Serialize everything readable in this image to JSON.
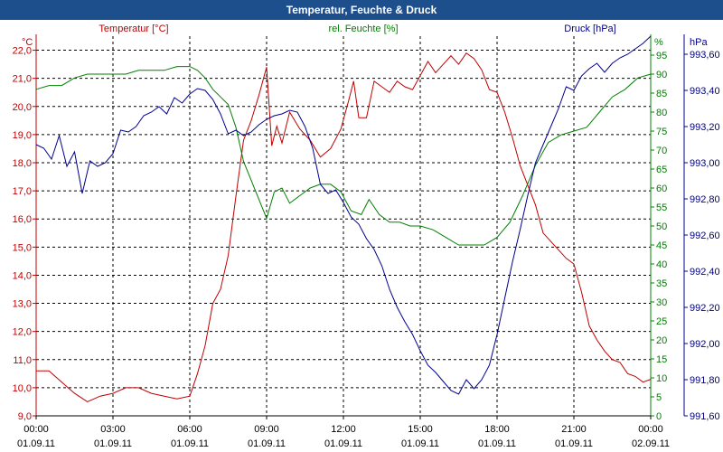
{
  "window": {
    "title": "Temperatur, Feuchte & Druck"
  },
  "colors": {
    "temperature": "#c00000",
    "humidity": "#008000",
    "pressure": "#000090",
    "grid": "#000000",
    "titlebar": "#1d4f8c"
  },
  "chart_data": {
    "type": "line",
    "title": "Temperatur, Feuchte & Druck",
    "grid": true,
    "x_hours": [
      0,
      3,
      6,
      9,
      12,
      15,
      18,
      21,
      24
    ],
    "x_tick_times": [
      "00:00",
      "03:00",
      "06:00",
      "09:00",
      "12:00",
      "15:00",
      "18:00",
      "21:00",
      "00:00"
    ],
    "x_tick_dates": [
      "01.09.11",
      "01.09.11",
      "01.09.11",
      "01.09.11",
      "01.09.11",
      "01.09.11",
      "01.09.11",
      "01.09.11",
      "02.09.11"
    ],
    "axes": {
      "temperature": {
        "unit": "°C",
        "label": "Temperatur [°C]",
        "range": [
          9.0,
          22.5
        ],
        "ticks": [
          "22,0",
          "21,0",
          "20,0",
          "19,0",
          "18,0",
          "17,0",
          "16,0",
          "15,0",
          "14,0",
          "13,0",
          "12,0",
          "11,0",
          "10,0",
          "9,0"
        ],
        "tick_values": [
          22,
          21,
          20,
          19,
          18,
          17,
          16,
          15,
          14,
          13,
          12,
          11,
          10,
          9
        ]
      },
      "humidity": {
        "unit": "%",
        "label": "rel. Feuchte [%]",
        "range": [
          0,
          100
        ],
        "ticks": [
          "95",
          "90",
          "85",
          "80",
          "75",
          "70",
          "65",
          "60",
          "55",
          "50",
          "45",
          "40",
          "35",
          "30",
          "25",
          "20",
          "15",
          "10",
          "5",
          "0"
        ],
        "tick_values": [
          95,
          90,
          85,
          80,
          75,
          70,
          65,
          60,
          55,
          50,
          45,
          40,
          35,
          30,
          25,
          20,
          15,
          10,
          5,
          0
        ]
      },
      "pressure": {
        "unit": "hPa",
        "label": "Druck [hPa]",
        "range": [
          991.6,
          993.7
        ],
        "ticks": [
          "993,60",
          "993,40",
          "993,20",
          "993,00",
          "992,80",
          "992,60",
          "992,40",
          "992,20",
          "992,00",
          "991,80",
          "991,60"
        ],
        "tick_values": [
          993.6,
          993.4,
          993.2,
          993.0,
          992.8,
          992.6,
          992.4,
          992.2,
          992.0,
          991.8,
          991.6
        ]
      }
    },
    "series": [
      {
        "name": "Temperatur [°C]",
        "axis": "temperature",
        "x": [
          0,
          0.5,
          1,
          1.5,
          2,
          2.5,
          3,
          3.5,
          4,
          4.5,
          5,
          5.5,
          6,
          6.3,
          6.6,
          6.9,
          7.2,
          7.5,
          7.8,
          8.1,
          8.4,
          8.7,
          9,
          9.2,
          9.4,
          9.6,
          9.9,
          10.3,
          10.7,
          11.1,
          11.5,
          11.9,
          12.2,
          12.4,
          12.6,
          12.9,
          13.2,
          13.5,
          13.8,
          14.1,
          14.4,
          14.7,
          15,
          15.3,
          15.6,
          15.9,
          16.2,
          16.5,
          16.8,
          17.1,
          17.4,
          17.7,
          18,
          18.3,
          18.6,
          18.9,
          19.2,
          19.5,
          19.8,
          20.1,
          20.4,
          20.7,
          21,
          21.3,
          21.6,
          21.9,
          22.2,
          22.5,
          22.8,
          23.1,
          23.4,
          23.7,
          24
        ],
        "values": [
          10.6,
          10.6,
          10.2,
          9.8,
          9.5,
          9.7,
          9.8,
          10.0,
          10.0,
          9.8,
          9.7,
          9.6,
          9.7,
          10.5,
          11.5,
          13.0,
          13.5,
          14.7,
          16.8,
          18.8,
          19.5,
          20.4,
          21.4,
          18.6,
          19.3,
          18.7,
          19.8,
          19.2,
          18.8,
          18.2,
          18.5,
          19.2,
          20.2,
          20.9,
          19.6,
          19.6,
          20.9,
          20.7,
          20.5,
          20.9,
          20.7,
          20.6,
          21.1,
          21.6,
          21.2,
          21.5,
          21.8,
          21.5,
          21.9,
          21.7,
          21.3,
          20.6,
          20.5,
          19.8,
          18.9,
          17.9,
          17.2,
          16.5,
          15.5,
          15.2,
          14.9,
          14.6,
          14.4,
          13.4,
          12.2,
          11.7,
          11.3,
          11.0,
          10.9,
          10.5,
          10.4,
          10.2,
          10.3
        ]
      },
      {
        "name": "rel. Feuchte [%]",
        "axis": "humidity",
        "x": [
          0,
          0.5,
          1,
          1.5,
          2,
          2.5,
          3,
          3.5,
          4,
          4.5,
          5,
          5.5,
          6,
          6.3,
          6.6,
          6.9,
          7.2,
          7.5,
          7.8,
          8.1,
          8.4,
          8.7,
          9,
          9.3,
          9.6,
          9.9,
          10.3,
          10.7,
          11.1,
          11.5,
          11.9,
          12.3,
          12.7,
          13.0,
          13.4,
          13.8,
          14.2,
          14.6,
          15,
          15.5,
          16,
          16.5,
          17,
          17.5,
          18,
          18.5,
          19,
          19.5,
          20,
          20.5,
          21,
          21.5,
          22,
          22.5,
          23,
          23.5,
          24
        ],
        "values": [
          86,
          87,
          87,
          89,
          90,
          90,
          90,
          90,
          91,
          91,
          91,
          92,
          92,
          91,
          89,
          86,
          84,
          82,
          76,
          67,
          62,
          57,
          52,
          59,
          60,
          56,
          58,
          60,
          61,
          61,
          59,
          54,
          53,
          57,
          53,
          51,
          51,
          50,
          50,
          49,
          47,
          45,
          45,
          45,
          47,
          51,
          58,
          66,
          72,
          74,
          75,
          76,
          80,
          84,
          86,
          89,
          90
        ]
      },
      {
        "name": "Druck [hPa]",
        "axis": "pressure",
        "x": [
          0,
          0.3,
          0.6,
          0.9,
          1.2,
          1.5,
          1.8,
          2.1,
          2.4,
          2.7,
          3,
          3.3,
          3.6,
          3.9,
          4.2,
          4.5,
          4.8,
          5.1,
          5.4,
          5.7,
          6,
          6.3,
          6.6,
          6.9,
          7.2,
          7.5,
          7.8,
          8.1,
          8.4,
          8.7,
          9,
          9.3,
          9.6,
          9.9,
          10.2,
          10.5,
          10.8,
          11.1,
          11.4,
          11.7,
          12,
          12.3,
          12.6,
          12.9,
          13.2,
          13.5,
          13.8,
          14.1,
          14.4,
          14.7,
          15,
          15.3,
          15.6,
          15.9,
          16.2,
          16.5,
          16.8,
          17.1,
          17.4,
          17.7,
          18,
          18.3,
          18.6,
          18.9,
          19.2,
          19.5,
          19.8,
          20.1,
          20.4,
          20.7,
          21,
          21.3,
          21.6,
          21.9,
          22.2,
          22.5,
          22.8,
          23.1,
          23.4,
          23.7,
          24
        ],
        "values": [
          993.1,
          993.08,
          993.02,
          993.15,
          992.98,
          993.06,
          992.83,
          993.01,
          992.98,
          993.0,
          993.05,
          993.18,
          993.17,
          993.2,
          993.26,
          993.28,
          993.31,
          993.27,
          993.36,
          993.33,
          993.38,
          993.41,
          993.4,
          993.35,
          993.27,
          993.16,
          993.18,
          993.15,
          993.17,
          993.21,
          993.24,
          993.26,
          993.27,
          993.29,
          993.28,
          993.2,
          993.08,
          992.88,
          992.83,
          992.85,
          992.78,
          992.7,
          992.66,
          992.58,
          992.52,
          992.43,
          992.3,
          992.2,
          992.12,
          992.05,
          991.96,
          991.88,
          991.84,
          991.79,
          991.74,
          991.72,
          991.8,
          991.75,
          991.8,
          991.88,
          992.05,
          992.25,
          992.45,
          992.63,
          992.82,
          993.0,
          993.1,
          993.2,
          993.3,
          993.42,
          993.4,
          993.48,
          993.52,
          993.55,
          993.5,
          993.55,
          993.58,
          993.6,
          993.63,
          993.66,
          993.7
        ]
      }
    ]
  }
}
